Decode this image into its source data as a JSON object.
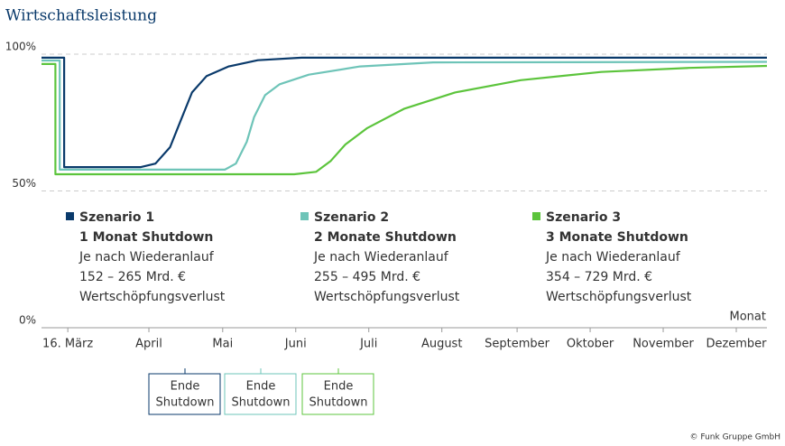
{
  "chart_data": {
    "type": "line",
    "title": "Wirtschaftsleistung",
    "xlabel": "Monat",
    "source": "© Funk Gruppe GmbH",
    "xlim": [
      -0.36,
      9.57
    ],
    "xticks": [
      {
        "value": 0,
        "label": "16. März"
      },
      {
        "value": 1.11,
        "label": "April"
      },
      {
        "value": 2.12,
        "label": "Mai"
      },
      {
        "value": 3.12,
        "label": "Juni"
      },
      {
        "value": 4.12,
        "label": "Juli"
      },
      {
        "value": 5.12,
        "label": "August"
      },
      {
        "value": 6.15,
        "label": "September"
      },
      {
        "value": 7.15,
        "label": "Oktober"
      },
      {
        "value": 8.15,
        "label": "November"
      },
      {
        "value": 9.15,
        "label": "Dezember"
      }
    ],
    "ylim": [
      0,
      100
    ],
    "yticks": [
      {
        "value": 0,
        "label": "0%"
      },
      {
        "value": 50,
        "label": "50%"
      },
      {
        "value": 100,
        "label": "100%"
      }
    ],
    "grid": true,
    "series": [
      {
        "name": "Szenario 1",
        "color": "#0a3a6b",
        "headline": "1 Monat Shutdown",
        "details": [
          "Je nach Wiederanlauf",
          "152 – 265 Mrd. €",
          "Wertschöpfungsverlust"
        ],
        "x": [
          -0.36,
          -0.05,
          -0.05,
          1.0,
          1.2,
          1.4,
          1.55,
          1.7,
          1.9,
          2.2,
          2.6,
          3.2,
          9.57
        ],
        "values": [
          98.7,
          98.7,
          58.7,
          58.7,
          60,
          66,
          76,
          86,
          92,
          95.5,
          97.8,
          98.7,
          98.7
        ]
      },
      {
        "name": "Szenario 2",
        "color": "#6ec4b8",
        "headline": "2 Monate Shutdown",
        "details": [
          "Je nach Wiederanlauf",
          "255 – 495 Mrd. €",
          "Wertschöpfungsverlust"
        ],
        "x": [
          -0.36,
          -0.11,
          -0.11,
          2.15,
          2.3,
          2.45,
          2.55,
          2.7,
          2.9,
          3.3,
          4,
          5,
          9.57
        ],
        "values": [
          97.7,
          97.7,
          57.8,
          57.8,
          60,
          68,
          77,
          85,
          89,
          92.5,
          95.5,
          97,
          97.2
        ]
      },
      {
        "name": "Szenario 3",
        "color": "#5cc43c",
        "headline": "3 Monate Shutdown",
        "details": [
          "Je nach Wiederanlauf",
          "354 – 729 Mrd. €",
          "Wertschöpfungsverlust"
        ],
        "x": [
          -0.36,
          -0.17,
          -0.17,
          3.1,
          3.4,
          3.6,
          3.8,
          4.1,
          4.6,
          5.3,
          6.2,
          7.3,
          8.5,
          9.57
        ],
        "values": [
          96.4,
          96.4,
          56.1,
          56.1,
          57,
          61,
          67,
          73,
          80,
          86,
          90.5,
          93.5,
          95,
          95.7
        ]
      }
    ],
    "shutdown_markers": [
      {
        "lines": [
          "Ende",
          "Shutdown"
        ],
        "color": "#0a3a6b"
      },
      {
        "lines": [
          "Ende",
          "Shutdown"
        ],
        "color": "#6ec4b8"
      },
      {
        "lines": [
          "Ende",
          "Shutdown"
        ],
        "color": "#5cc43c"
      }
    ]
  }
}
